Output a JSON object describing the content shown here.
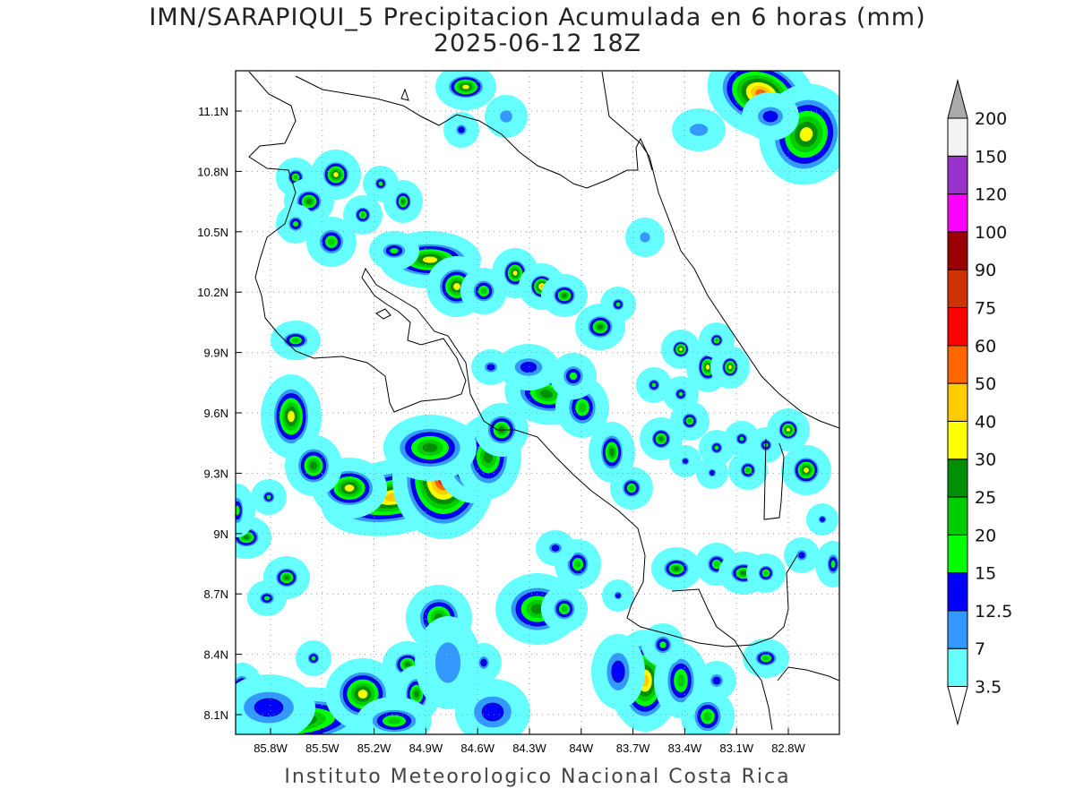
{
  "title": "IMN/SARAPIQUI_5 Precipitacion Acumulada en 6 horas (mm)",
  "subtitle": "2025-06-12 18Z",
  "credit": "Instituto Meteorologico Nacional Costa Rica",
  "map": {
    "variable": "6-hour accumulated precipitation",
    "units": "mm",
    "extent": {
      "lon": [
        "86.0W",
        "82.5W"
      ],
      "lat": [
        "8.0N",
        "11.3N"
      ]
    },
    "x_ticks": [
      "85.8W",
      "85.5W",
      "85.2W",
      "84.9W",
      "84.6W",
      "84.3W",
      "84W",
      "83.7W",
      "83.4W",
      "83.1W",
      "82.8W"
    ],
    "y_ticks": [
      "11.1N",
      "10.8N",
      "10.5N",
      "10.2N",
      "9.9N",
      "9.6N",
      "9.3N",
      "9N",
      "8.7N",
      "8.4N",
      "8.1N"
    ],
    "grid": true
  },
  "legend": {
    "labels": [
      "3.5",
      "7",
      "12.5",
      "15",
      "20",
      "25",
      "30",
      "40",
      "50",
      "60",
      "75",
      "90",
      "100",
      "120",
      "150",
      "200"
    ],
    "colors": [
      "#66ffff",
      "#3399ff",
      "#0000ff",
      "#00ff00",
      "#00cc00",
      "#008f00",
      "#ffff00",
      "#ffcc00",
      "#ff6600",
      "#ff0000",
      "#cc3300",
      "#990000",
      "#ff00ff",
      "#9933cc",
      "#f2f2f2"
    ],
    "over_color": "#aaaaaa",
    "under_color": "#ffffff"
  }
}
